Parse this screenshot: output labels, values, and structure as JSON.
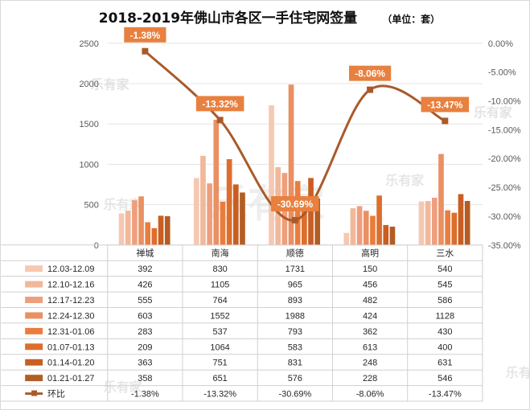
{
  "title": "2018-2019年佛山市各区一手住宅网签量",
  "unit": "（单位：套）",
  "watermark": "乐有家",
  "colors": {
    "series": [
      "#f6c8b1",
      "#f1b89a",
      "#ee9f7e",
      "#ea9062",
      "#ea7d3c",
      "#dd6e2c",
      "#c85e22",
      "#b35d24"
    ],
    "line": "#a95a2a",
    "label_bg": "#e8803f"
  },
  "chart_data": {
    "type": "bar",
    "categories": [
      "禅城",
      "南海",
      "顺德",
      "高明",
      "三水"
    ],
    "series": [
      {
        "name": "12.03-12.09",
        "values": [
          392,
          830,
          1731,
          150,
          540
        ]
      },
      {
        "name": "12.10-12.16",
        "values": [
          426,
          1105,
          965,
          456,
          545
        ]
      },
      {
        "name": "12.17-12.23",
        "values": [
          555,
          764,
          893,
          482,
          586
        ]
      },
      {
        "name": "12.24-12.30",
        "values": [
          603,
          1552,
          1988,
          424,
          1128
        ]
      },
      {
        "name": "12.31-01.06",
        "values": [
          283,
          537,
          793,
          362,
          430
        ]
      },
      {
        "name": "01.07-01.13",
        "values": [
          209,
          1064,
          583,
          613,
          400
        ]
      },
      {
        "name": "01.14-01.20",
        "values": [
          363,
          751,
          831,
          248,
          631
        ]
      },
      {
        "name": "01.21-01.27",
        "values": [
          358,
          651,
          576,
          228,
          546
        ]
      }
    ],
    "line_series": {
      "name": "环比",
      "values": [
        -1.38,
        -13.32,
        -30.69,
        -8.06,
        -13.47
      ],
      "labels": [
        "-1.38%",
        "-13.32%",
        "-30.69%",
        "-8.06%",
        "-13.47%"
      ]
    },
    "ylim": [
      0,
      2500
    ],
    "yticks": [
      "0",
      "500",
      "1000",
      "1500",
      "2000",
      "2500"
    ],
    "y2lim": [
      -35,
      0
    ],
    "y2ticks": [
      "0.00%",
      "-5.00%",
      "-10.00%",
      "-15.00%",
      "-20.00%",
      "-25.00%",
      "-30.00%",
      "-35.00%"
    ],
    "grid": true,
    "legend": "data-table"
  }
}
